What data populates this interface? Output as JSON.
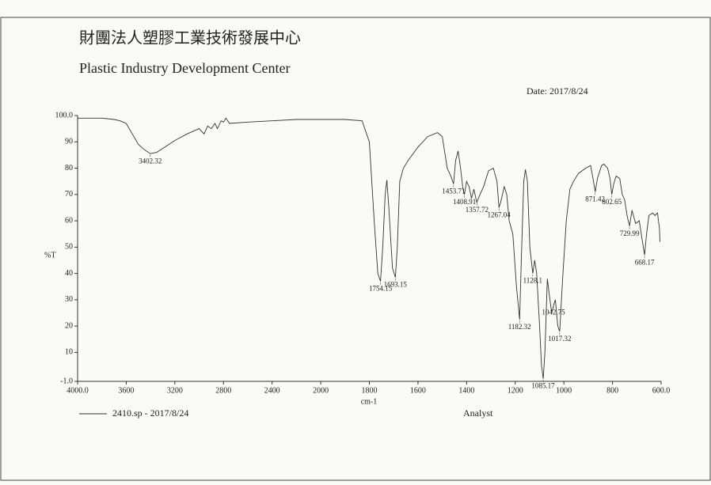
{
  "chart_data": {
    "type": "line",
    "title": "財團法人塑膠工業技術發展中心",
    "subtitle": "Plastic Industry Development Center",
    "date": "Date: 2017/8/24",
    "xlabel": "cm-1",
    "ylabel": "%T",
    "analyst": "Analyst",
    "xlim": [
      4000,
      600
    ],
    "ylim": [
      -1,
      100
    ],
    "xticks": [
      {
        "value": 4000,
        "label": "4000.0"
      },
      3600,
      3200,
      2800,
      2400,
      2000,
      1800,
      1600,
      1400,
      1200,
      1000,
      800,
      {
        "value": 600,
        "label": "600.0"
      }
    ],
    "yticks": [
      {
        "value": -1,
        "label": "-1.0"
      },
      10,
      20,
      30,
      40,
      50,
      60,
      70,
      80,
      90,
      {
        "value": 100,
        "label": "100.0"
      }
    ],
    "x": [
      4000,
      3800,
      3700,
      3650,
      3600,
      3550,
      3500,
      3450,
      3402,
      3350,
      3300,
      3200,
      3100,
      3000,
      2960,
      2930,
      2900,
      2870,
      2850,
      2820,
      2800,
      2780,
      2750,
      2600,
      2400,
      2200,
      2000,
      1900,
      1830,
      1800,
      1780,
      1765,
      1754,
      1745,
      1735,
      1728,
      1720,
      1705,
      1693,
      1685,
      1675,
      1660,
      1640,
      1600,
      1560,
      1520,
      1500,
      1480,
      1465,
      1454,
      1445,
      1435,
      1425,
      1415,
      1409,
      1400,
      1390,
      1380,
      1370,
      1358,
      1345,
      1330,
      1310,
      1290,
      1275,
      1267,
      1260,
      1245,
      1235,
      1225,
      1210,
      1195,
      1182,
      1175,
      1165,
      1158,
      1150,
      1140,
      1128,
      1120,
      1112,
      1100,
      1092,
      1085,
      1078,
      1068,
      1060,
      1050,
      1042,
      1035,
      1025,
      1017,
      1005,
      990,
      975,
      960,
      940,
      910,
      890,
      880,
      871,
      862,
      845,
      835,
      820,
      810,
      803,
      795,
      785,
      770,
      760,
      750,
      740,
      730,
      720,
      705,
      690,
      680,
      668,
      660,
      650,
      635,
      625,
      615,
      607,
      605
    ],
    "series": [
      {
        "name": "2410.sp - 2017/8/24",
        "color": "#333333",
        "values": [
          99,
          99,
          98.5,
          98,
          97,
          93,
          89,
          87,
          85.5,
          86,
          87.5,
          90.5,
          93,
          95,
          93,
          96,
          95,
          97,
          95,
          98,
          97.5,
          99,
          97,
          97.5,
          98,
          98.5,
          98.5,
          98.5,
          98,
          90,
          60,
          40,
          37,
          50,
          70,
          75.5,
          65,
          42,
          38.5,
          50,
          75,
          80,
          83,
          88,
          92,
          93.5,
          92,
          80,
          77,
          74,
          83,
          86.5,
          80,
          72,
          70,
          75,
          73,
          68.5,
          72,
          67,
          70,
          73,
          79,
          80,
          75,
          65,
          67,
          73,
          70,
          60,
          55,
          35,
          22.5,
          45,
          75,
          79.5,
          75,
          50,
          40,
          45,
          40,
          20,
          5,
          0,
          10,
          38,
          32,
          25,
          28,
          30,
          20,
          18,
          38,
          60,
          72,
          75,
          78,
          80,
          81,
          76,
          71,
          76,
          81,
          81.5,
          80,
          76,
          70,
          74,
          77,
          76,
          70,
          68,
          62,
          58,
          64,
          59,
          60,
          54,
          47,
          55,
          62,
          63,
          62,
          63,
          57,
          52
        ]
      }
    ],
    "peaks": [
      {
        "x": 3402.32,
        "y": 85.5
      },
      {
        "x": 1754.15,
        "y": 37
      },
      {
        "x": 1693.15,
        "y": 38.5
      },
      {
        "x": 1453.71,
        "y": 74
      },
      {
        "x": 1408.91,
        "y": 70
      },
      {
        "x": 1357.72,
        "y": 67
      },
      {
        "x": 1267.04,
        "y": 65
      },
      {
        "x": 1182.32,
        "y": 22.5
      },
      {
        "x": 1128.1,
        "y": 40
      },
      {
        "x": 1085.17,
        "y": 0
      },
      {
        "x": 1042.75,
        "y": 28
      },
      {
        "x": 1017.32,
        "y": 18
      },
      {
        "x": 871.42,
        "y": 71
      },
      {
        "x": 802.65,
        "y": 70
      },
      {
        "x": 729.99,
        "y": 58
      },
      {
        "x": 668.17,
        "y": 47
      }
    ]
  }
}
